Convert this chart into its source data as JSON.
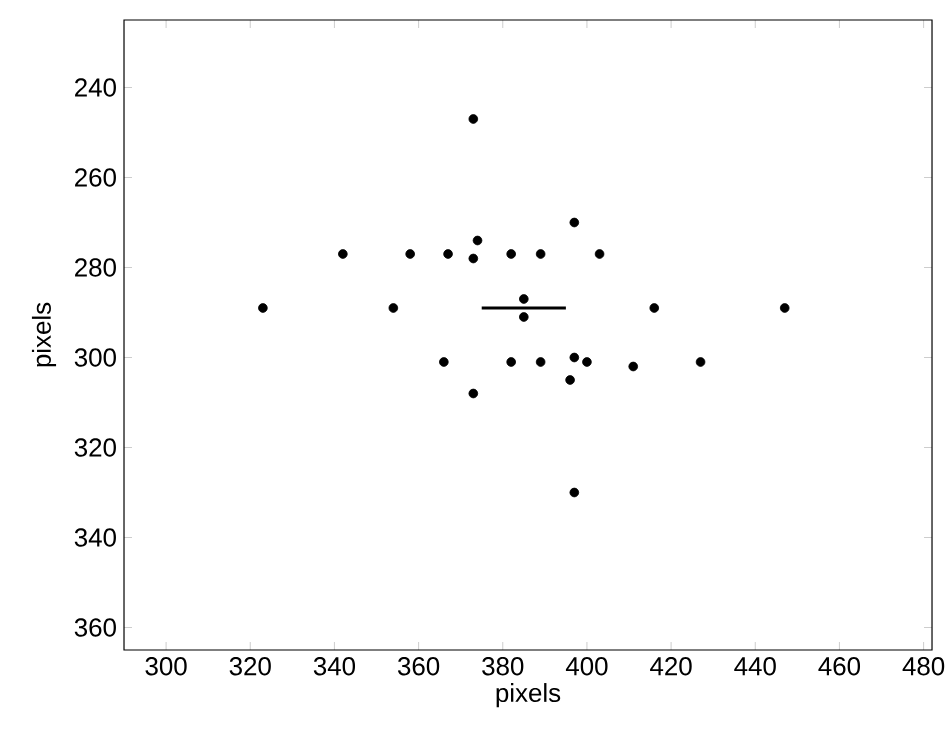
{
  "chart_data": {
    "type": "scatter",
    "xlabel": "pixels",
    "ylabel": "pixels",
    "xlim": [
      290,
      482
    ],
    "ylim": [
      365,
      225
    ],
    "xticks": [
      300,
      320,
      340,
      360,
      380,
      400,
      420,
      440,
      460,
      480
    ],
    "yticks": [
      240,
      260,
      280,
      300,
      320,
      340,
      360
    ],
    "series": [
      {
        "marker": "circle",
        "color": "#000000",
        "x": [
          373,
          397,
          342,
          358,
          367,
          373,
          374,
          382,
          389,
          403,
          323,
          354,
          385,
          385,
          416,
          447,
          366,
          382,
          389,
          397,
          400,
          411,
          427,
          396,
          373,
          397
        ],
        "values": [
          247,
          270,
          277,
          277,
          277,
          278,
          274,
          277,
          277,
          277,
          289,
          289,
          287,
          291,
          289,
          289,
          301,
          301,
          301,
          300,
          301,
          302,
          301,
          305,
          308,
          330
        ]
      },
      {
        "type": "line",
        "marker": "none",
        "color": "#000000",
        "x": [
          375,
          395
        ],
        "values": [
          289,
          289
        ]
      }
    ]
  }
}
